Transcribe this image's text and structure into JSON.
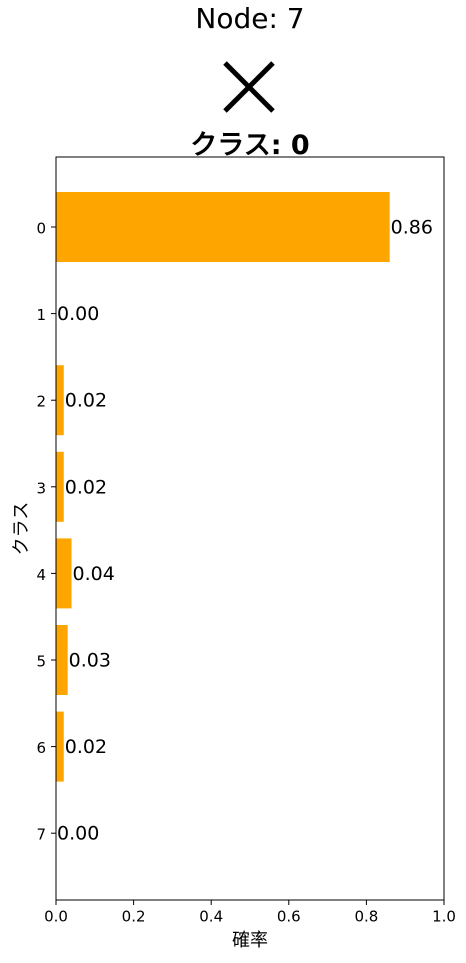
{
  "header": {
    "node_title": "Node: 7",
    "class_title": "クラス: 0",
    "mark_icon": "cross-icon"
  },
  "chart_data": {
    "type": "bar",
    "orientation": "horizontal",
    "title": "クラス: 0",
    "categories": [
      "0",
      "1",
      "2",
      "3",
      "4",
      "5",
      "6",
      "7"
    ],
    "values": [
      0.86,
      0.0,
      0.02,
      0.02,
      0.04,
      0.03,
      0.02,
      0.0
    ],
    "value_labels": [
      "0.86",
      "0.00",
      "0.02",
      "0.02",
      "0.04",
      "0.03",
      "0.02",
      "0.00"
    ],
    "xlabel": "確率",
    "ylabel": "クラス",
    "xlim": [
      0,
      1.0
    ],
    "xticks": [
      "0.0",
      "0.2",
      "0.4",
      "0.6",
      "0.8",
      "1.0"
    ],
    "bar_color": "#ffa500",
    "grid": false,
    "legend": "none"
  }
}
